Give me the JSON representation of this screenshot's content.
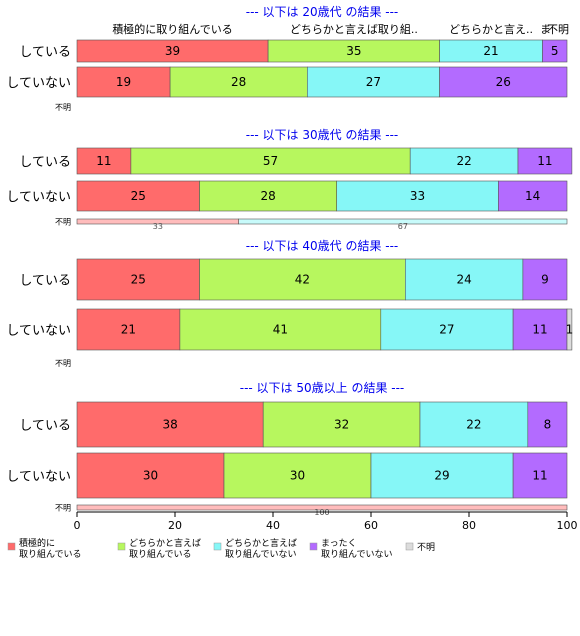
{
  "chart_data": {
    "type": "bar",
    "orientation": "horizontal",
    "stacked": true,
    "xlim": [
      0,
      100
    ],
    "xticks": [
      0,
      20,
      40,
      60,
      80,
      100
    ],
    "top_category_labels": [
      "積極的に取り組んでいる",
      "どちらかと言えば取り組..",
      "どちらかと言え..",
      "ま",
      "不明"
    ],
    "legend": [
      {
        "label": "積極的に\n取り組んでいる",
        "color": "#ff6b6b"
      },
      {
        "label": "どちらかと言えば\n取り組んでいる",
        "color": "#b7f75e"
      },
      {
        "label": "どちらかと言えば\n取り組んでいない",
        "color": "#86f7f7"
      },
      {
        "label": "まったく\n取り組んでいない",
        "color": "#b36bff"
      },
      {
        "label": "不明",
        "color": "#dcdcdc"
      }
    ],
    "panels": [
      {
        "title": "--- 以下は 20歳代 の結果 ---",
        "rows": [
          {
            "label": "している",
            "values": [
              39,
              35,
              21,
              5,
              0
            ],
            "labels": [
              "39",
              "35",
              "21",
              "5",
              ""
            ]
          },
          {
            "label": "していない",
            "values": [
              19,
              28,
              27,
              26,
              0
            ],
            "labels": [
              "19",
              "28",
              "27",
              "26",
              ""
            ]
          },
          {
            "label": "不明",
            "values": [],
            "labels": []
          }
        ]
      },
      {
        "title": "--- 以下は 30歳代 の結果 ---",
        "rows": [
          {
            "label": "している",
            "values": [
              11,
              57,
              22,
              11,
              0
            ],
            "labels": [
              "11",
              "57",
              "22",
              "11",
              ""
            ]
          },
          {
            "label": "していない",
            "values": [
              25,
              28,
              33,
              14,
              0
            ],
            "labels": [
              "25",
              "28",
              "33",
              "14",
              ""
            ]
          },
          {
            "label": "不明",
            "values": [
              33,
              0,
              67,
              0,
              0
            ],
            "labels": [
              "33",
              "",
              "67",
              "",
              ""
            ]
          }
        ]
      },
      {
        "title": "--- 以下は 40歳代 の結果 ---",
        "rows": [
          {
            "label": "している",
            "values": [
              25,
              42,
              24,
              9,
              0
            ],
            "labels": [
              "25",
              "42",
              "24",
              "9",
              ""
            ]
          },
          {
            "label": "していない",
            "values": [
              21,
              41,
              27,
              11,
              1
            ],
            "labels": [
              "21",
              "41",
              "27",
              "11",
              "1"
            ]
          },
          {
            "label": "不明",
            "values": [],
            "labels": []
          }
        ]
      },
      {
        "title": "--- 以下は 50歳以上 の結果 ---",
        "rows": [
          {
            "label": "している",
            "values": [
              38,
              32,
              22,
              8,
              0
            ],
            "labels": [
              "38",
              "32",
              "22",
              "8",
              ""
            ]
          },
          {
            "label": "していない",
            "values": [
              30,
              30,
              29,
              11,
              0
            ],
            "labels": [
              "30",
              "30",
              "29",
              "11",
              ""
            ]
          },
          {
            "label": "不明",
            "values": [
              100,
              0,
              0,
              0,
              0
            ],
            "labels": [
              "100",
              "",
              "",
              "",
              ""
            ]
          }
        ]
      }
    ]
  }
}
